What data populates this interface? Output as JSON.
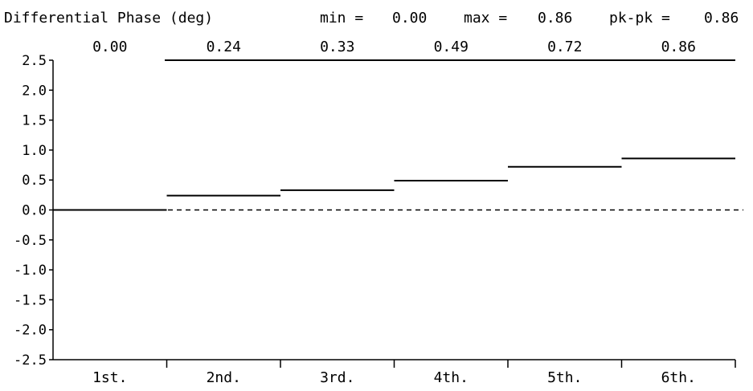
{
  "header": {
    "title": "Differential Phase (deg)",
    "min_label": "min =",
    "min_value": "0.00",
    "max_label": "max =",
    "max_value": "0.86",
    "pkpk_label": "pk-pk =",
    "pkpk_value": "0.86"
  },
  "chart_data": {
    "type": "line",
    "title": "Differential Phase (deg)",
    "categories": [
      "1st.",
      "2nd.",
      "3rd.",
      "4th.",
      "5th.",
      "6th."
    ],
    "values": [
      0.0,
      0.24,
      0.33,
      0.49,
      0.72,
      0.86
    ],
    "value_labels": [
      "0.00",
      "0.24",
      "0.33",
      "0.49",
      "0.72",
      "0.86"
    ],
    "yticks": [
      "2.5",
      "2.0",
      "1.5",
      "1.0",
      "0.5",
      "0.0",
      "-0.5",
      "-1.0",
      "-1.5",
      "-2.0",
      "-2.5"
    ],
    "ylim": [
      -2.5,
      2.5
    ],
    "reference_line": 0.0,
    "grid": false,
    "style": "step"
  },
  "colors": {
    "background": "#ffffff",
    "ink": "#000000"
  }
}
